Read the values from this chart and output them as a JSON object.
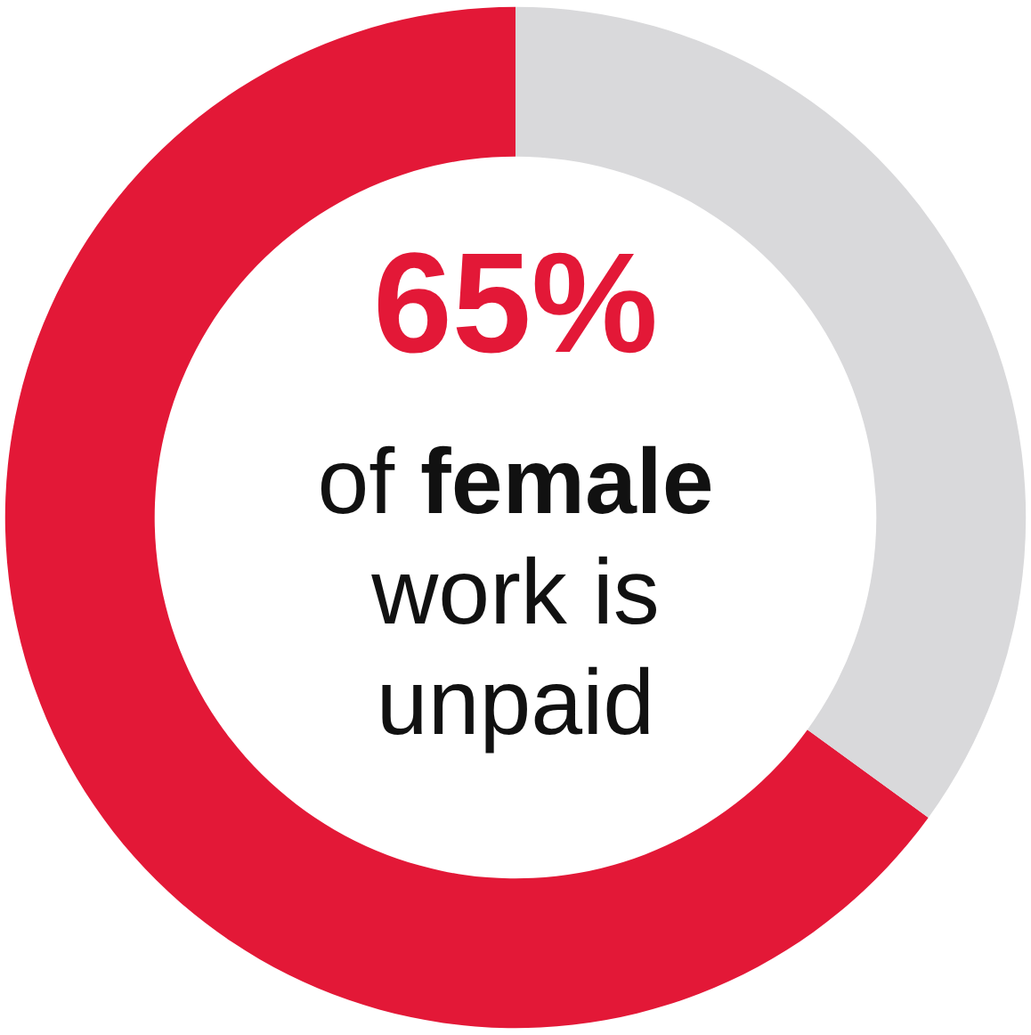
{
  "chart_data": {
    "type": "donut",
    "categories": [
      null,
      null
    ],
    "values": [
      65,
      35
    ],
    "colors": [
      "#e31837",
      "#d9d9db"
    ],
    "value_labels": [
      "65%",
      null
    ],
    "annotations": [
      "of female work is unpaid"
    ]
  }
}
